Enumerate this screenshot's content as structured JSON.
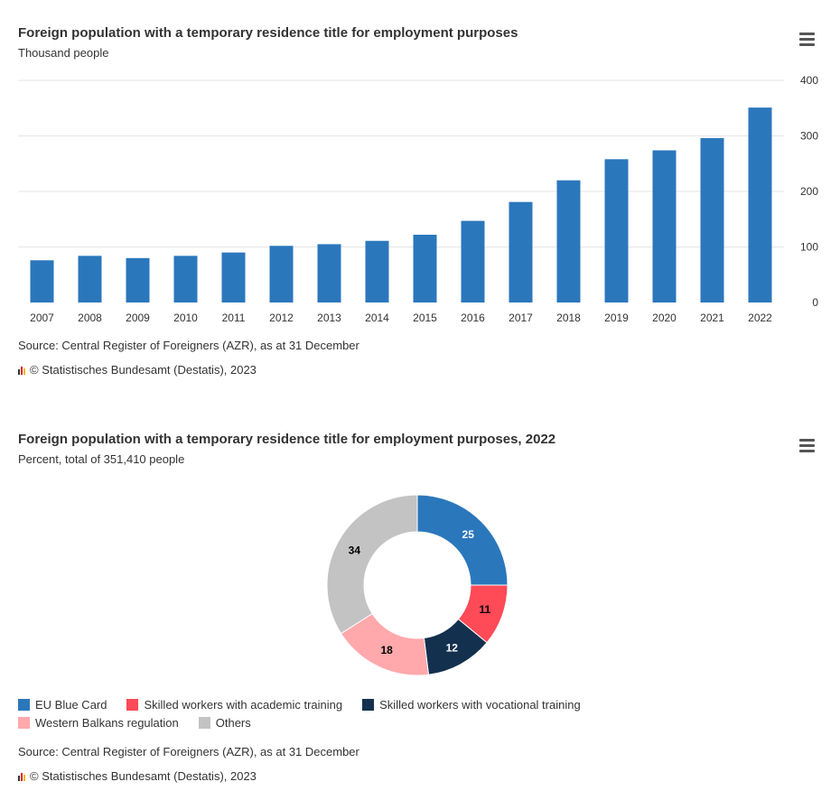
{
  "charts": [
    {
      "id": "bar",
      "title": "Foreign population with a temporary residence title for employment purposes",
      "subtitle": "Thousand people",
      "source": "Source: Central Register of Foreigners (AZR), as at 31 December",
      "credit": "© Statistisches Bundesamt (Destatis), 2023",
      "menu_icon": "hamburger-menu-icon"
    },
    {
      "id": "pie",
      "title": "Foreign population with a temporary residence title for employment purposes, 2022",
      "subtitle": "Percent, total of 351,410 people",
      "source": "Source: Central Register of Foreigners (AZR), as at 31 December",
      "credit": "© Statistisches Bundesamt (Destatis), 2023",
      "menu_icon": "hamburger-menu-icon"
    }
  ],
  "chart_data": [
    {
      "type": "bar",
      "title": "Foreign population with a temporary residence title for employment purposes",
      "subtitle": "Thousand people",
      "categories": [
        "2007",
        "2008",
        "2009",
        "2010",
        "2011",
        "2012",
        "2013",
        "2014",
        "2015",
        "2016",
        "2017",
        "2018",
        "2019",
        "2020",
        "2021",
        "2022"
      ],
      "values": [
        76,
        84,
        80,
        84,
        90,
        102,
        105,
        111,
        122,
        147,
        181,
        220,
        258,
        274,
        296,
        351
      ],
      "ylim": [
        0,
        400
      ],
      "yticks": [
        0,
        100,
        200,
        300,
        400
      ],
      "y_axis_side": "right",
      "grid": true,
      "color": "#2b77bc"
    },
    {
      "type": "pie",
      "title": "Foreign population with a temporary residence title for employment purposes, 2022",
      "subtitle": "Percent, total of 351,410 people",
      "donut": true,
      "slices": [
        {
          "label": "EU Blue Card",
          "value": 25,
          "color": "#2b77bc",
          "label_color": "#ffffff"
        },
        {
          "label": "Skilled workers with academic training",
          "value": 11,
          "color": "#ff4a57",
          "label_color": "#000000"
        },
        {
          "label": "Skilled workers with vocational training",
          "value": 12,
          "color": "#14304f",
          "label_color": "#ffffff"
        },
        {
          "label": "Western Balkans regulation",
          "value": 18,
          "color": "#ffa9ac",
          "label_color": "#000000"
        },
        {
          "label": "Others",
          "value": 34,
          "color": "#c3c3c3",
          "label_color": "#000000"
        }
      ],
      "legend_position": "bottom-left"
    }
  ]
}
